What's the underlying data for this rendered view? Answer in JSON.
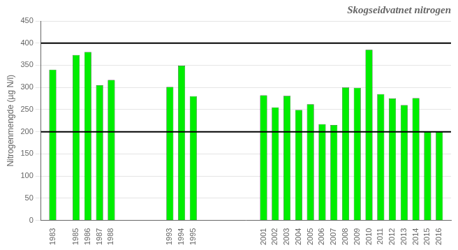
{
  "chart_data": {
    "type": "bar",
    "title": "Skogseidvatnet nitrogen",
    "ylabel": "Nitrogenmengde (µg N/l)",
    "x": [
      1983,
      1985,
      1986,
      1987,
      1988,
      1993,
      1994,
      1995,
      2001,
      2002,
      2003,
      2004,
      2005,
      2006,
      2007,
      2008,
      2009,
      2010,
      2011,
      2012,
      2013,
      2014,
      2015,
      2016
    ],
    "values": [
      340,
      373,
      380,
      305,
      317,
      301,
      349,
      280,
      282,
      255,
      281,
      249,
      262,
      217,
      215,
      300,
      299,
      385,
      285,
      275,
      260,
      276,
      200,
      200
    ],
    "color": "#00ee00",
    "edge_color": "#000000",
    "hlines": [
      {
        "y": 400,
        "color": "#000000"
      },
      {
        "y": 200,
        "color": "#000000"
      }
    ],
    "xlim": [
      1982,
      2017
    ],
    "xticks": [
      1983,
      1985,
      1986,
      1987,
      1988,
      1993,
      1994,
      1995,
      2001,
      2002,
      2003,
      2004,
      2005,
      2006,
      2007,
      2008,
      2009,
      2010,
      2011,
      2012,
      2013,
      2014,
      2015,
      2016
    ],
    "ylim": [
      0,
      450
    ],
    "yticks": [
      0,
      50,
      100,
      150,
      200,
      250,
      300,
      350,
      400,
      450
    ],
    "grid": "y"
  }
}
